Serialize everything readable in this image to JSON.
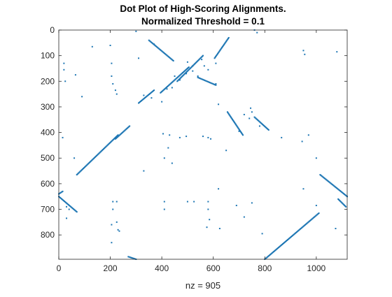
{
  "chart_data": {
    "type": "scatter",
    "title": [
      "Dot Plot of High-Scoring Alignments.",
      "Normalized Threshold = 0.1"
    ],
    "xlabel": "nz = 905",
    "ylabel": "",
    "xlim": [
      0,
      1120
    ],
    "ylim": [
      0,
      895
    ],
    "y_reversed": true,
    "grid": false,
    "legend": "none",
    "xticks": [
      0,
      200,
      400,
      600,
      800,
      1000
    ],
    "yticks": [
      0,
      100,
      200,
      300,
      400,
      500,
      600,
      700,
      800
    ],
    "marker_color": "#1f77b4",
    "segments": [
      {
        "x": [
          70,
          230
        ],
        "y": [
          565,
          410
        ]
      },
      {
        "x": [
          220,
          275
        ],
        "y": [
          425,
          375
        ]
      },
      {
        "x": [
          0,
          70
        ],
        "y": [
          650,
          710
        ]
      },
      {
        "x": [
          0,
          15
        ],
        "y": [
          640,
          630
        ]
      },
      {
        "x": [
          310,
          370
        ],
        "y": [
          285,
          235
        ]
      },
      {
        "x": [
          350,
          445
        ],
        "y": [
          40,
          120
        ]
      },
      {
        "x": [
          395,
          505
        ],
        "y": [
          245,
          145
        ]
      },
      {
        "x": [
          460,
          560
        ],
        "y": [
          200,
          100
        ]
      },
      {
        "x": [
          605,
          660
        ],
        "y": [
          110,
          30
        ]
      },
      {
        "x": [
          655,
          715
        ],
        "y": [
          320,
          410
        ]
      },
      {
        "x": [
          760,
          815
        ],
        "y": [
          340,
          390
        ]
      },
      {
        "x": [
          800,
          1010
        ],
        "y": [
          895,
          715
        ]
      },
      {
        "x": [
          1015,
          1120
        ],
        "y": [
          565,
          650
        ]
      },
      {
        "x": [
          1085,
          1115
        ],
        "y": [
          660,
          690
        ]
      },
      {
        "x": [
          270,
          300
        ],
        "y": [
          885,
          895
        ]
      },
      {
        "x": [
          540,
          610
        ],
        "y": [
          185,
          215
        ]
      }
    ],
    "points": [
      {
        "x": 20,
        "y": 130
      },
      {
        "x": 20,
        "y": 155
      },
      {
        "x": 25,
        "y": 200
      },
      {
        "x": 65,
        "y": 175
      },
      {
        "x": 90,
        "y": 260
      },
      {
        "x": 130,
        "y": 65
      },
      {
        "x": 200,
        "y": 60
      },
      {
        "x": 205,
        "y": 130
      },
      {
        "x": 205,
        "y": 180
      },
      {
        "x": 210,
        "y": 210
      },
      {
        "x": 220,
        "y": 235
      },
      {
        "x": 225,
        "y": 250
      },
      {
        "x": 310,
        "y": 110
      },
      {
        "x": 330,
        "y": 255
      },
      {
        "x": 360,
        "y": 265
      },
      {
        "x": 400,
        "y": 280
      },
      {
        "x": 370,
        "y": 55
      },
      {
        "x": 405,
        "y": 405
      },
      {
        "x": 430,
        "y": 410
      },
      {
        "x": 470,
        "y": 420
      },
      {
        "x": 495,
        "y": 415
      },
      {
        "x": 560,
        "y": 415
      },
      {
        "x": 580,
        "y": 420
      },
      {
        "x": 590,
        "y": 425
      },
      {
        "x": 425,
        "y": 460
      },
      {
        "x": 410,
        "y": 500
      },
      {
        "x": 440,
        "y": 520
      },
      {
        "x": 330,
        "y": 550
      },
      {
        "x": 650,
        "y": 470
      },
      {
        "x": 620,
        "y": 290
      },
      {
        "x": 620,
        "y": 620
      },
      {
        "x": 500,
        "y": 125
      },
      {
        "x": 520,
        "y": 140
      },
      {
        "x": 555,
        "y": 115
      },
      {
        "x": 565,
        "y": 140
      },
      {
        "x": 580,
        "y": 155
      },
      {
        "x": 495,
        "y": 170
      },
      {
        "x": 520,
        "y": 160
      },
      {
        "x": 540,
        "y": 180
      },
      {
        "x": 610,
        "y": 210
      },
      {
        "x": 610,
        "y": 130
      },
      {
        "x": 450,
        "y": 180
      },
      {
        "x": 470,
        "y": 195
      },
      {
        "x": 420,
        "y": 230
      },
      {
        "x": 440,
        "y": 225
      },
      {
        "x": 700,
        "y": 395
      },
      {
        "x": 720,
        "y": 330
      },
      {
        "x": 745,
        "y": 305
      },
      {
        "x": 750,
        "y": 320
      },
      {
        "x": 740,
        "y": 345
      },
      {
        "x": 780,
        "y": 375
      },
      {
        "x": 865,
        "y": 420
      },
      {
        "x": 945,
        "y": 435
      },
      {
        "x": 970,
        "y": 410
      },
      {
        "x": 950,
        "y": 80
      },
      {
        "x": 955,
        "y": 95
      },
      {
        "x": 1080,
        "y": 85
      },
      {
        "x": 1000,
        "y": 500
      },
      {
        "x": 950,
        "y": 620
      },
      {
        "x": 1000,
        "y": 685
      },
      {
        "x": 1075,
        "y": 775
      },
      {
        "x": 760,
        "y": 0
      },
      {
        "x": 770,
        "y": 10
      },
      {
        "x": 300,
        "y": 5
      },
      {
        "x": 210,
        "y": 670
      },
      {
        "x": 210,
        "y": 700
      },
      {
        "x": 225,
        "y": 750
      },
      {
        "x": 230,
        "y": 780
      },
      {
        "x": 205,
        "y": 760
      },
      {
        "x": 205,
        "y": 830
      },
      {
        "x": 235,
        "y": 785
      },
      {
        "x": 225,
        "y": 670
      },
      {
        "x": 410,
        "y": 670
      },
      {
        "x": 410,
        "y": 700
      },
      {
        "x": 500,
        "y": 670
      },
      {
        "x": 525,
        "y": 670
      },
      {
        "x": 580,
        "y": 670
      },
      {
        "x": 580,
        "y": 700
      },
      {
        "x": 585,
        "y": 740
      },
      {
        "x": 575,
        "y": 770
      },
      {
        "x": 625,
        "y": 775
      },
      {
        "x": 690,
        "y": 685
      },
      {
        "x": 750,
        "y": 675
      },
      {
        "x": 720,
        "y": 730
      },
      {
        "x": 790,
        "y": 795
      },
      {
        "x": 30,
        "y": 690
      },
      {
        "x": 40,
        "y": 700
      },
      {
        "x": 30,
        "y": 735
      },
      {
        "x": 60,
        "y": 500
      },
      {
        "x": 15,
        "y": 420
      }
    ]
  }
}
